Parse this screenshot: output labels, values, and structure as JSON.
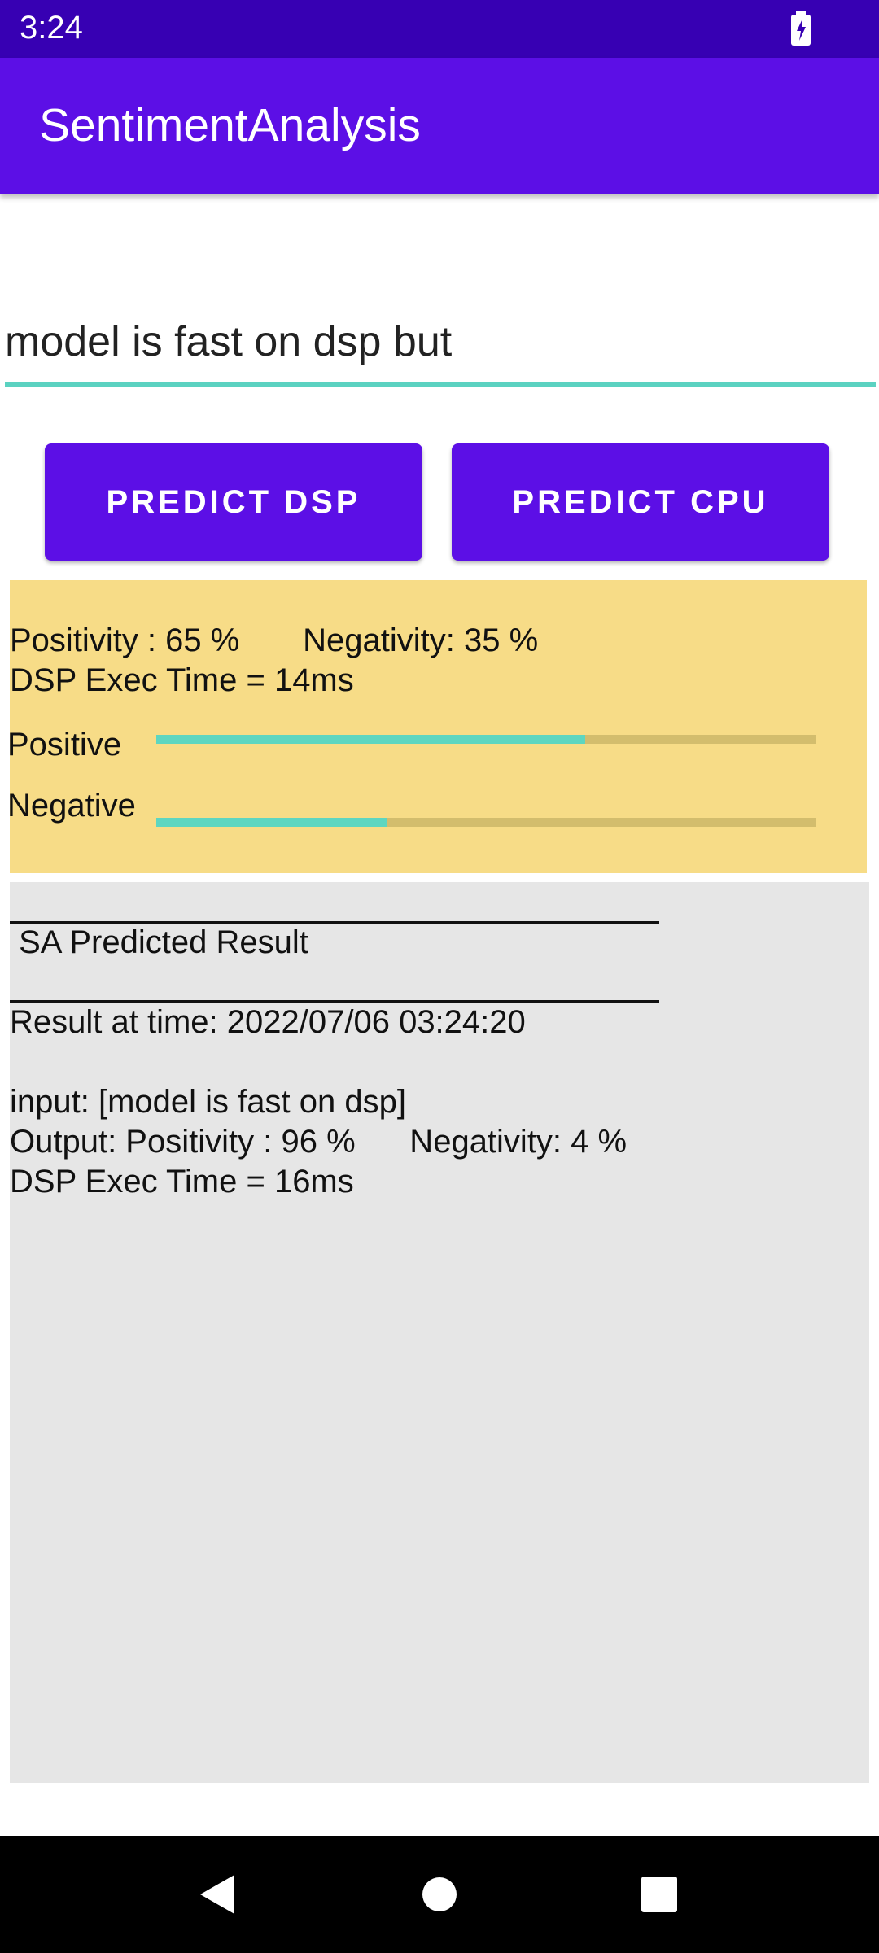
{
  "status_bar": {
    "time": "3:24"
  },
  "app_bar": {
    "title": "SentimentAnalysis"
  },
  "input": {
    "value": "model is fast on dsp but",
    "placeholder": ""
  },
  "buttons": {
    "predict_dsp": "PREDICT DSP",
    "predict_cpu": "PREDICT CPU"
  },
  "live_result": {
    "scores_line": "Positivity : 65 %       Negativity: 35 %",
    "exec_time": "DSP Exec Time = 14ms",
    "positive_label": "Positive",
    "negative_label": "Negative",
    "positive_value": 65,
    "negative_value": 35
  },
  "history": {
    "divider_top": "________________________________________",
    "heading": " SA Predicted Result",
    "divider_bottom": "________________________________________",
    "result_time": "Result at time: 2022/07/06 03:24:20",
    "input_line": "input: [model is fast on dsp]",
    "output_line": "Output: Positivity : 96 %      Negativity: 4 %",
    "exec_time": "DSP Exec Time = 16ms"
  },
  "colors": {
    "status_bar": "#3700b3",
    "app_bar": "#5c0fe6",
    "accent": "#5ed6c0",
    "yellow_panel": "#f7dc87",
    "gray_panel": "#e6e6e6"
  },
  "icons": {
    "battery": "battery-charging-icon",
    "back": "back-triangle-icon",
    "home": "home-circle-icon",
    "recents": "recents-square-icon"
  }
}
